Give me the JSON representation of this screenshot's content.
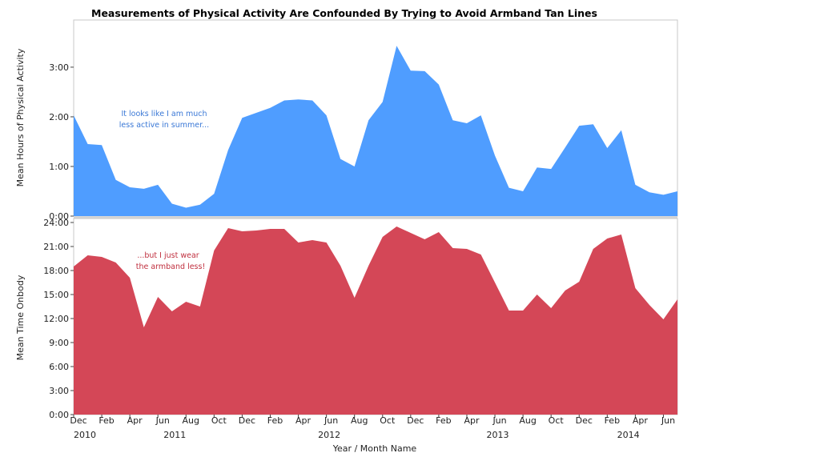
{
  "chart_data": {
    "title": "Measurements of Physical Activity Are Confounded By Trying to Avoid Armband Tan Lines",
    "xlabel": "Year / Month Name",
    "x_tick_labels": [
      "Dec",
      "Feb",
      "Apr",
      "Jun",
      "Aug",
      "Oct",
      "Dec",
      "Feb",
      "Apr",
      "Jun",
      "Aug",
      "Oct",
      "Dec",
      "Feb",
      "Apr",
      "Jun",
      "Aug",
      "Oct",
      "Dec",
      "Feb",
      "Apr",
      "Jun"
    ],
    "x_year_labels": [
      "2010",
      "2011",
      "2012",
      "2013",
      "2014"
    ],
    "x_year_positions": [
      0,
      6.4,
      17.4,
      29.4,
      38.7
    ],
    "months": [
      "2010-12",
      "2011-01",
      "2011-02",
      "2011-03",
      "2011-04",
      "2011-05",
      "2011-06",
      "2011-07",
      "2011-08",
      "2011-09",
      "2011-10",
      "2011-11",
      "2011-12",
      "2012-01",
      "2012-02",
      "2012-03",
      "2012-04",
      "2012-05",
      "2012-06",
      "2012-07",
      "2012-08",
      "2012-09",
      "2012-10",
      "2012-11",
      "2012-12",
      "2013-01",
      "2013-02",
      "2013-03",
      "2013-04",
      "2013-05",
      "2013-06",
      "2013-07",
      "2013-08",
      "2013-09",
      "2013-10",
      "2013-11",
      "2013-12",
      "2014-01",
      "2014-02",
      "2014-03",
      "2014-04",
      "2014-05",
      "2014-06",
      "2014-07"
    ],
    "panels": [
      {
        "type": "area",
        "ylabel": "Mean Hours of Physical Activity",
        "ylim": [
          0,
          3.95
        ],
        "yticks": [
          0,
          1,
          2,
          3
        ],
        "ytick_labels": [
          "0:00",
          "1:00",
          "2:00",
          "3:00"
        ],
        "color": "#4f9dff",
        "annotation": [
          "It looks like I am much",
          "less active in summer..."
        ],
        "annotation_color": "#3a78d6",
        "values": [
          2.03,
          1.45,
          1.43,
          0.73,
          0.58,
          0.55,
          0.63,
          0.25,
          0.17,
          0.23,
          0.45,
          1.33,
          1.98,
          2.08,
          2.18,
          2.33,
          2.35,
          2.33,
          2.03,
          1.15,
          1.0,
          1.93,
          2.3,
          3.43,
          2.93,
          2.92,
          2.65,
          1.93,
          1.87,
          2.03,
          1.22,
          0.57,
          0.5,
          0.98,
          0.95,
          1.38,
          1.82,
          1.85,
          1.37,
          1.73,
          0.63,
          0.48,
          0.43,
          0.5
        ]
      },
      {
        "type": "area",
        "ylabel": "Mean Time Onbody",
        "ylim": [
          0,
          24.5
        ],
        "yticks": [
          0,
          3,
          6,
          9,
          12,
          15,
          18,
          21,
          24
        ],
        "ytick_labels": [
          "0:00",
          "3:00",
          "6:00",
          "9:00",
          "12:00",
          "15:00",
          "18:00",
          "21:00",
          "24:00"
        ],
        "color": "#d44757",
        "annotation": [
          "...but I just wear",
          "the armband less!"
        ],
        "annotation_color": "#c0303f",
        "values": [
          18.5,
          19.9,
          19.7,
          19.0,
          17.1,
          10.9,
          14.7,
          12.9,
          14.1,
          13.5,
          20.5,
          23.3,
          22.9,
          23.0,
          23.2,
          23.2,
          21.5,
          21.8,
          21.5,
          18.6,
          14.6,
          18.6,
          22.2,
          23.5,
          22.7,
          21.9,
          22.8,
          20.8,
          20.7,
          20.0,
          16.5,
          13.0,
          13.0,
          15.0,
          13.3,
          15.5,
          16.6,
          20.7,
          22.0,
          22.5,
          15.8,
          13.7,
          11.9,
          14.4
        ]
      }
    ]
  }
}
